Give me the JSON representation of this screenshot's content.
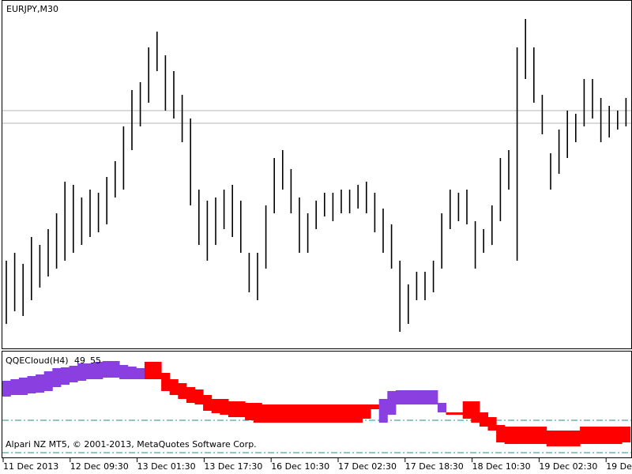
{
  "chart_data": [
    {
      "type": "ohlc",
      "title": "EURJPY,M30",
      "color": "#000000",
      "categories": [
        "11 Dec 2013",
        null,
        null,
        null,
        null,
        null,
        null,
        null,
        "12 Dec 09:30",
        null,
        null,
        null,
        null,
        null,
        null,
        null,
        "13 Dec 01:30",
        null,
        null,
        null,
        null,
        null,
        null,
        null,
        "13 Dec 17:30",
        null,
        null,
        null,
        null,
        null,
        null,
        null,
        "16 Dec 10:30",
        null,
        null,
        null,
        null,
        null,
        null,
        null,
        "17 Dec 02:30",
        null,
        null,
        null,
        null,
        null,
        null,
        null,
        "17 Dec 18:30",
        null,
        null,
        null,
        null,
        null,
        null,
        null,
        "18 Dec 10:30",
        null,
        null,
        null,
        null,
        null,
        null,
        null,
        "19 Dec 02:30",
        null,
        null,
        null,
        null,
        null,
        null,
        null,
        "19 Dec",
        null,
        null
      ],
      "high": [
        141.35,
        141.4,
        141.33,
        141.5,
        141.45,
        141.55,
        141.65,
        141.85,
        141.83,
        141.75,
        141.8,
        141.78,
        141.88,
        141.98,
        142.2,
        142.43,
        142.48,
        142.7,
        142.8,
        142.65,
        142.55,
        142.4,
        142.25,
        141.8,
        141.73,
        141.75,
        141.8,
        141.83,
        141.73,
        141.4,
        141.4,
        141.7,
        142.0,
        142.05,
        141.93,
        141.75,
        141.65,
        141.73,
        141.78,
        141.78,
        141.8,
        141.8,
        141.83,
        141.85,
        141.78,
        141.68,
        141.58,
        141.35,
        141.2,
        141.28,
        141.28,
        141.35,
        141.65,
        141.8,
        141.78,
        141.8,
        141.6,
        141.55,
        141.7,
        142.0,
        142.05,
        142.7,
        142.88,
        142.7,
        142.4,
        142.03,
        142.18,
        142.3,
        142.28,
        142.5,
        142.5,
        142.38,
        142.33,
        142.3,
        142.38
      ],
      "low": [
        140.95,
        141.03,
        141.0,
        141.1,
        141.18,
        141.25,
        141.3,
        141.35,
        141.4,
        141.45,
        141.5,
        141.53,
        141.58,
        141.75,
        141.8,
        142.05,
        142.2,
        142.35,
        142.55,
        142.3,
        142.25,
        142.1,
        141.7,
        141.45,
        141.35,
        141.45,
        141.55,
        141.5,
        141.4,
        141.15,
        141.1,
        141.3,
        141.65,
        141.8,
        141.65,
        141.4,
        141.4,
        141.55,
        141.63,
        141.6,
        141.65,
        141.65,
        141.68,
        141.65,
        141.53,
        141.4,
        141.3,
        140.9,
        140.95,
        141.1,
        141.1,
        141.15,
        141.3,
        141.55,
        141.6,
        141.58,
        141.3,
        141.4,
        141.45,
        141.6,
        141.8,
        141.35,
        142.5,
        142.35,
        142.15,
        141.8,
        141.9,
        142.0,
        142.1,
        142.2,
        142.25,
        142.1,
        142.13,
        142.18,
        142.2
      ],
      "ylim": [
        140.8,
        143.0
      ],
      "levels": [
        142.3,
        142.22
      ],
      "level_color": "#b4b4b4"
    },
    {
      "type": "cloud",
      "title": "QQECloud(H4)",
      "up_color": "#8a3fe0",
      "down_color": "#ff0000",
      "series": [
        {
          "values": [
            72.4,
            73.0,
            73.6,
            74.2,
            74.8,
            76.0,
            77.2,
            77.5,
            78.1,
            79.0,
            79.0,
            79.6,
            79.9,
            79.9,
            78.4,
            77.8,
            77.2,
            73.0,
            73.0,
            68.5,
            67.0,
            65.5,
            64.0,
            63.4,
            61.0,
            60.1,
            59.5,
            58.6,
            58.6,
            57.4,
            56.5,
            56.5,
            56.5,
            56.5,
            56.5,
            56.5,
            56.5,
            56.5,
            56.5,
            56.5,
            56.5,
            56.5,
            56.5,
            58.0,
            61.6,
            65.5,
            68.5,
            68.8,
            68.8,
            68.8,
            68.8,
            68.8,
            64.0,
            59.5,
            59.5,
            58.0,
            56.5,
            55.0,
            53.5,
            49.0,
            48.4,
            48.4,
            48.4,
            48.4,
            48.4,
            47.5,
            47.5,
            47.5,
            47.5,
            48.4,
            48.4,
            48.4,
            48.4,
            48.4,
            49
          ]
        },
        {
          "values": [
            66.4,
            67.0,
            67.0,
            67.6,
            67.9,
            68.5,
            70.0,
            70.9,
            71.8,
            72.4,
            73.0,
            73.0,
            73.6,
            73.6,
            73.0,
            73.0,
            73.0,
            79.6,
            79.6,
            75.4,
            73.0,
            71.5,
            70.0,
            69.1,
            67.0,
            65.5,
            65.5,
            64.6,
            64.6,
            64.0,
            64.0,
            63.4,
            63.4,
            63.4,
            63.4,
            63.4,
            63.4,
            63.4,
            63.4,
            63.4,
            63.4,
            63.4,
            63.4,
            63.4,
            63.4,
            56.5,
            59.5,
            63.4,
            63.4,
            63.4,
            63.4,
            63.4,
            60.4,
            60.4,
            60.4,
            64.6,
            64.6,
            60.4,
            58.6,
            55.6,
            55.0,
            55.0,
            55.0,
            55.0,
            55.0,
            53.5,
            53.5,
            53.5,
            53.5,
            55.0,
            55.0,
            55.0,
            55.0,
            55.0,
            55
          ]
        }
      ],
      "ylim": [
        43,
        83.5
      ],
      "levels": [
        57.4,
        45.1
      ],
      "level_color": "#2a8c8c",
      "footer": "Alpari NZ MT5, © 2001-2013, MetaQuotes Software Corp."
    }
  ]
}
